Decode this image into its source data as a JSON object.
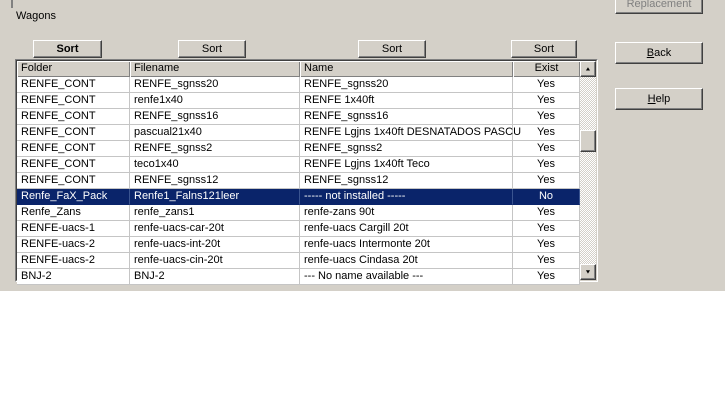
{
  "window": {
    "label": "Wagons"
  },
  "sort_buttons": [
    "Sort",
    "Sort",
    "Sort",
    "Sort"
  ],
  "action_buttons": {
    "replacement": "Replacement",
    "back": "Back",
    "help": "Help"
  },
  "table": {
    "columns": [
      "Folder",
      "Filename",
      "Name",
      "Exist"
    ],
    "rows": [
      {
        "folder": "RENFE_CONT",
        "filename": "RENFE_sgnss20",
        "name": "RENFE_sgnss20",
        "exist": "Yes",
        "selected": false
      },
      {
        "folder": "RENFE_CONT",
        "filename": "renfe1x40",
        "name": "RENFE 1x40ft",
        "exist": "Yes",
        "selected": false
      },
      {
        "folder": "RENFE_CONT",
        "filename": "RENFE_sgnss16",
        "name": "RENFE_sgnss16",
        "exist": "Yes",
        "selected": false
      },
      {
        "folder": "RENFE_CONT",
        "filename": "pascual21x40",
        "name": "RENFE Lgjns 1x40ft DESNATADOS PASCU",
        "exist": "Yes",
        "selected": false
      },
      {
        "folder": "RENFE_CONT",
        "filename": "RENFE_sgnss2",
        "name": "RENFE_sgnss2",
        "exist": "Yes",
        "selected": false
      },
      {
        "folder": "RENFE_CONT",
        "filename": "teco1x40",
        "name": "RENFE Lgjns 1x40ft Teco",
        "exist": "Yes",
        "selected": false
      },
      {
        "folder": "RENFE_CONT",
        "filename": "RENFE_sgnss12",
        "name": "RENFE_sgnss12",
        "exist": "Yes",
        "selected": false
      },
      {
        "folder": "Renfe_FaX_Pack",
        "filename": "Renfe1_Falns121leer",
        "name": "----- not installed -----",
        "exist": "No",
        "selected": true
      },
      {
        "folder": "Renfe_Zans",
        "filename": "renfe_zans1",
        "name": "renfe-zans 90t",
        "exist": "Yes",
        "selected": false
      },
      {
        "folder": "RENFE-uacs-1",
        "filename": "renfe-uacs-car-20t",
        "name": "renfe-uacs Cargill 20t",
        "exist": "Yes",
        "selected": false
      },
      {
        "folder": "RENFE-uacs-2",
        "filename": "renfe-uacs-int-20t",
        "name": "renfe-uacs Intermonte 20t",
        "exist": "Yes",
        "selected": false
      },
      {
        "folder": "RENFE-uacs-2",
        "filename": "renfe-uacs-cin-20t",
        "name": "renfe-uacs Cindasa 20t",
        "exist": "Yes",
        "selected": false
      },
      {
        "folder": "BNJ-2",
        "filename": "BNJ-2",
        "name": "--- No name available ---",
        "exist": "Yes",
        "selected": false
      }
    ]
  },
  "scrollbar": {
    "up_icon": "▲",
    "down_icon": "▼"
  },
  "colors": {
    "dialog_bg": "#d4d0c8",
    "selection_bg": "#0a246a",
    "selection_text": "#ffffff",
    "grid_line": "#c5c5c5",
    "disabled_text": "#808080"
  }
}
